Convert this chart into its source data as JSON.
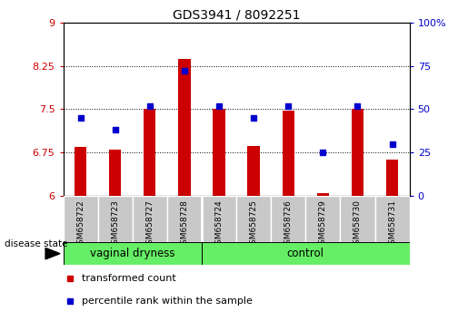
{
  "title": "GDS3941 / 8092251",
  "samples": [
    "GSM658722",
    "GSM658723",
    "GSM658727",
    "GSM658728",
    "GSM658724",
    "GSM658725",
    "GSM658726",
    "GSM658729",
    "GSM658730",
    "GSM658731"
  ],
  "red_values": [
    6.85,
    6.8,
    7.5,
    8.37,
    7.5,
    6.87,
    7.47,
    6.05,
    7.5,
    6.63
  ],
  "blue_values": [
    45,
    38,
    52,
    72,
    52,
    45,
    52,
    25,
    52,
    30
  ],
  "group1_label": "vaginal dryness",
  "group2_label": "control",
  "group1_count": 4,
  "group2_count": 6,
  "ylim_left": [
    6,
    9
  ],
  "ylim_right": [
    0,
    100
  ],
  "yticks_left": [
    6,
    6.75,
    7.5,
    8.25,
    9
  ],
  "yticks_right": [
    0,
    25,
    50,
    75,
    100
  ],
  "red_color": "#cc0000",
  "blue_color": "#0000cc",
  "group_bg_color": "#66ee66",
  "sample_bg_color": "#c8c8c8",
  "bar_width": 0.35,
  "legend_red_label": "transformed count",
  "legend_blue_label": "percentile rank within the sample"
}
